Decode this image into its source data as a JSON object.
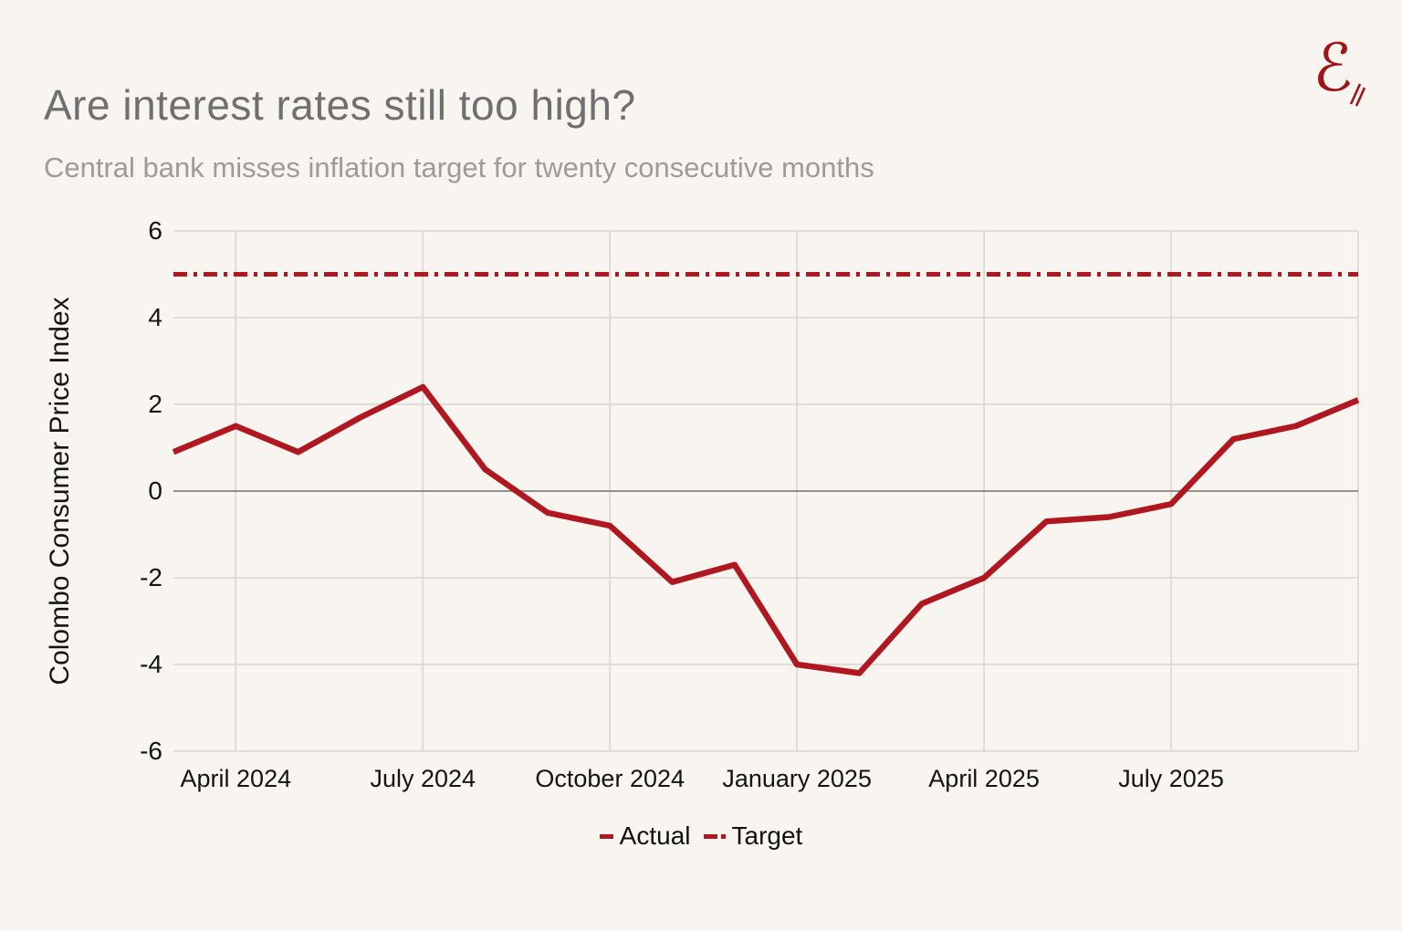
{
  "header": {
    "logo_glyph": "ℰ"
  },
  "chart_data": {
    "type": "line",
    "title": "Are interest rates still too high?",
    "subtitle": "Central bank misses inflation target for twenty consecutive months",
    "ylabel": "Colombo Consumer Price Index",
    "xlabel": "",
    "x": [
      "Mar 2024",
      "Apr 2024",
      "May 2024",
      "Jun 2024",
      "Jul 2024",
      "Aug 2024",
      "Sep 2024",
      "Oct 2024",
      "Nov 2024",
      "Dec 2024",
      "Jan 2025",
      "Feb 2025",
      "Mar 2025",
      "Apr 2025",
      "May 2025",
      "Jun 2025",
      "Jul 2025",
      "Aug 2025",
      "Sep 2025",
      "Oct 2025"
    ],
    "series": [
      {
        "name": "Actual",
        "style": "solid",
        "color": "#AF1820",
        "values": [
          0.9,
          1.5,
          0.9,
          1.7,
          2.4,
          0.5,
          -0.5,
          -0.8,
          -2.1,
          -1.7,
          -4.0,
          -4.2,
          -2.6,
          -2.0,
          -0.7,
          -0.6,
          -0.3,
          1.2,
          1.5,
          2.1
        ]
      },
      {
        "name": "Target",
        "style": "dash-dot",
        "color": "#AF1820",
        "constant_value": 5.0
      }
    ],
    "ylim": [
      -6,
      6
    ],
    "y_ticks": [
      6,
      4,
      2,
      0,
      -2,
      -4,
      -6
    ],
    "x_gridline_indices": [
      1,
      4,
      7,
      10,
      13,
      16,
      19
    ],
    "x_tick_labels": [
      {
        "index": 1,
        "label": "April 2024"
      },
      {
        "index": 4,
        "label": "July 2024"
      },
      {
        "index": 7,
        "label": "October 2024"
      },
      {
        "index": 10,
        "label": "January 2025"
      },
      {
        "index": 13,
        "label": "April 2025"
      },
      {
        "index": 16,
        "label": "July 2025"
      }
    ],
    "grid": true,
    "legend_position": "bottom-center",
    "colors": {
      "background": "#F8F4EF",
      "gridline": "#DAD5CF",
      "zero_line": "#85817C",
      "line_red": "#AF1820",
      "title_grey": "#6F6F6F",
      "subtitle_grey": "#9E9A95",
      "logo_red": "#A01318"
    }
  },
  "legend": {
    "items": [
      {
        "label": "Actual"
      },
      {
        "label": "Target"
      }
    ]
  }
}
